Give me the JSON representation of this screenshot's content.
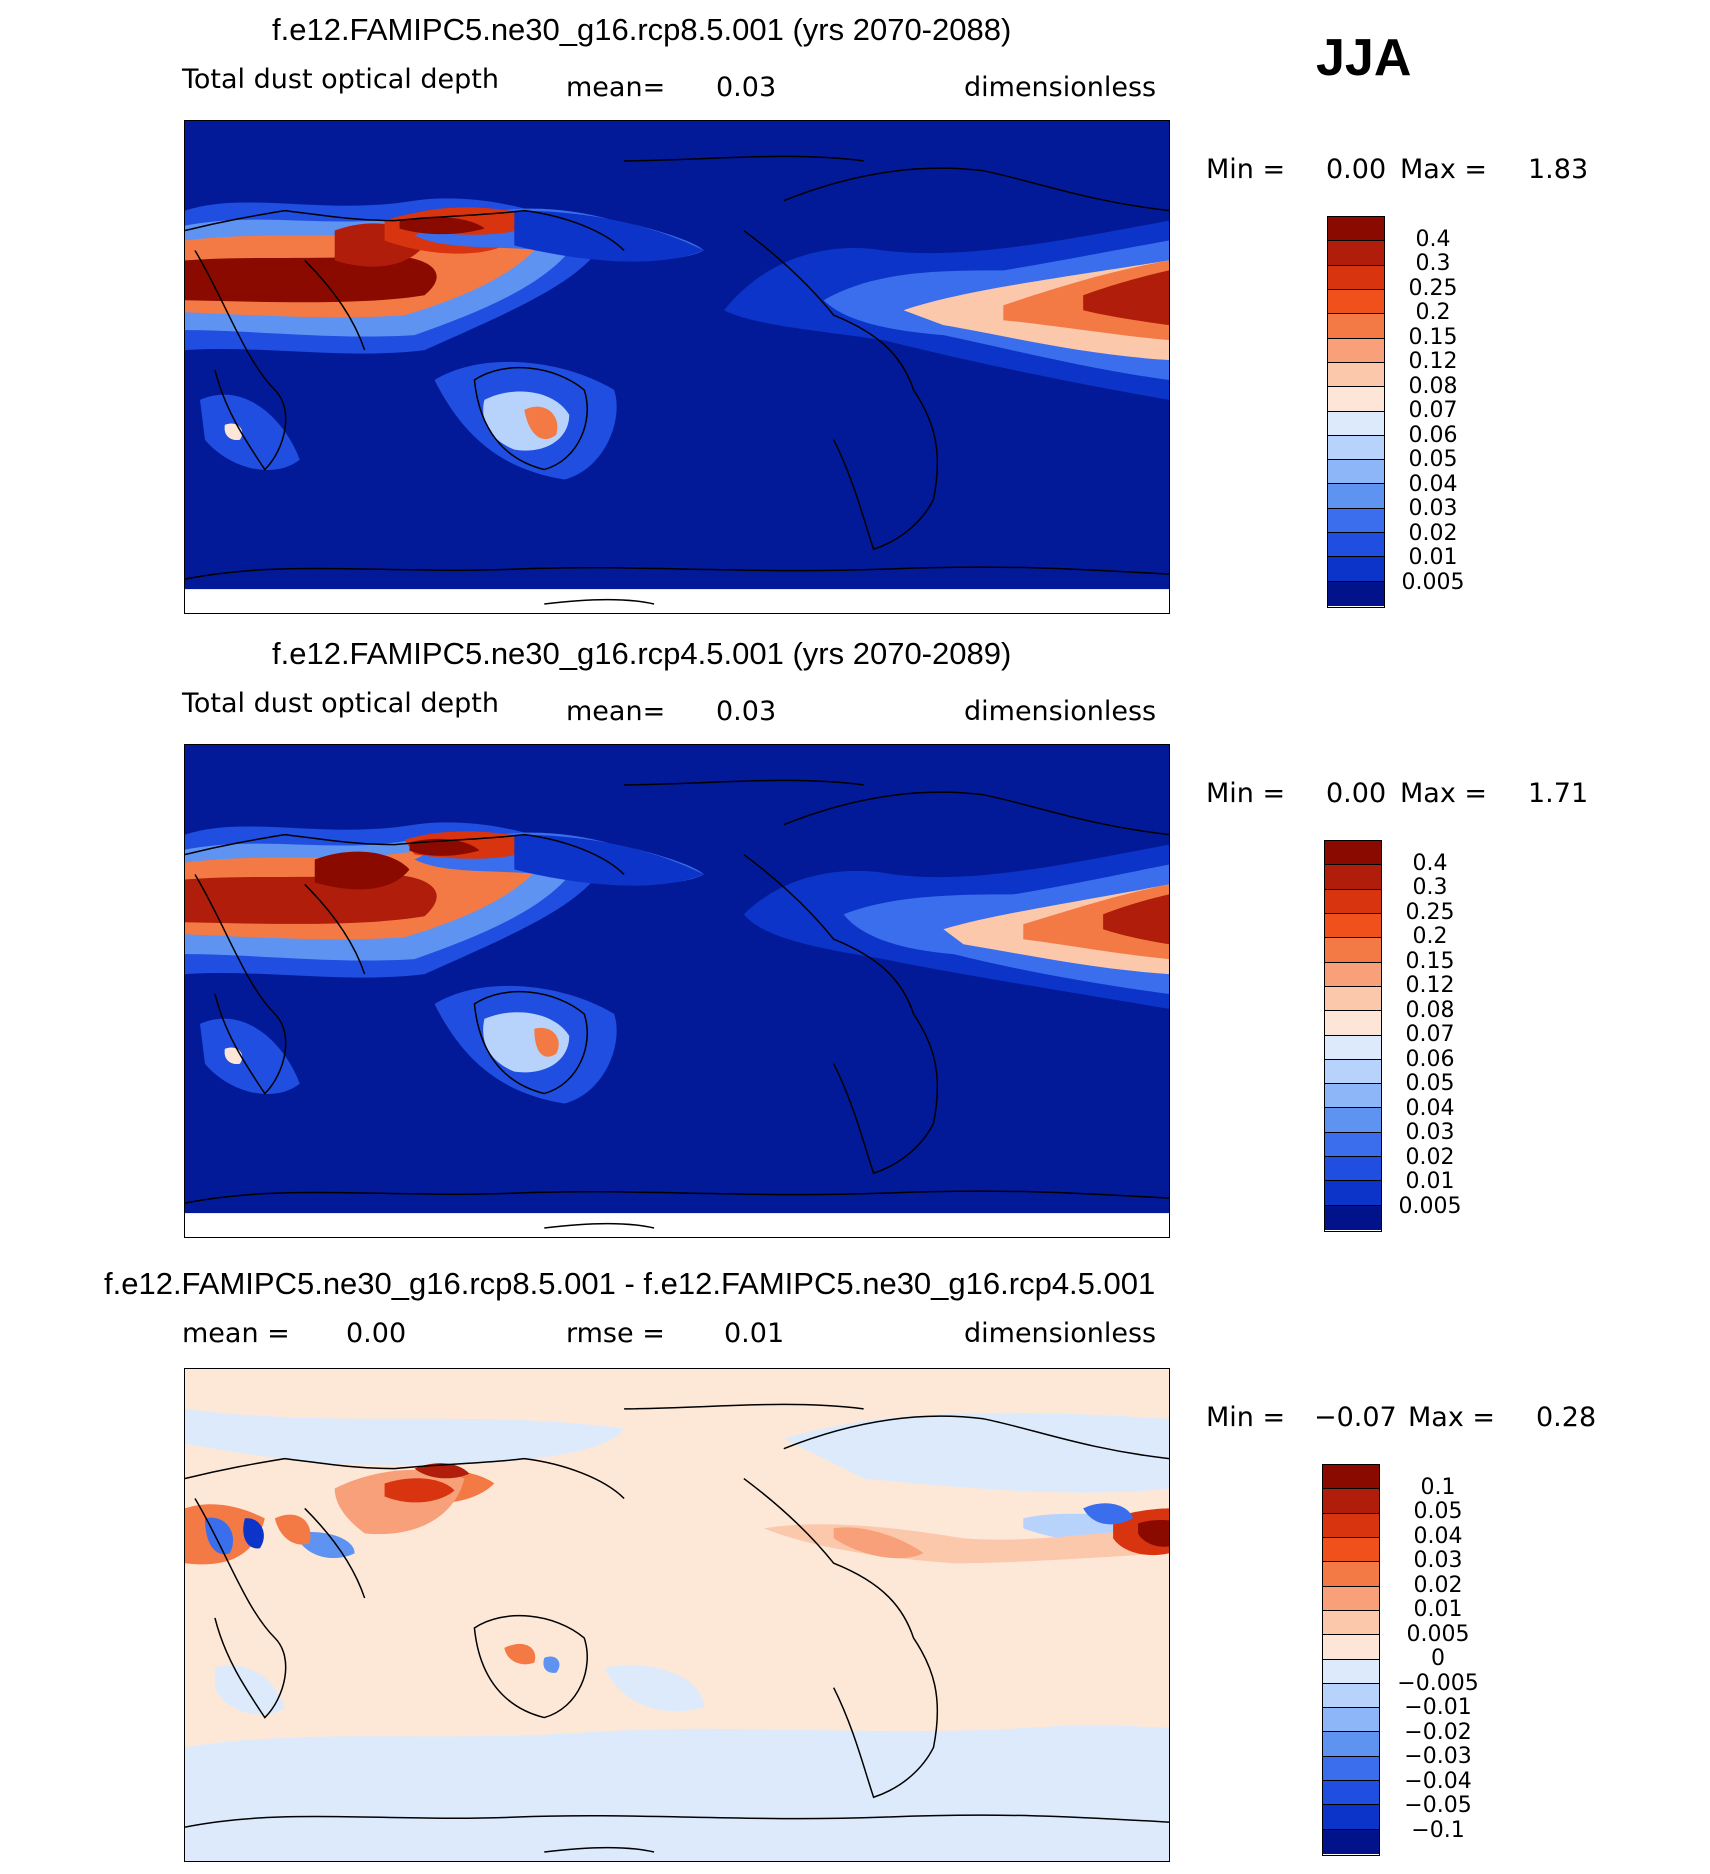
{
  "season": "JJA",
  "panels": [
    {
      "title": "f.e12.FAMIPC5.ne30_g16.rcp8.5.001 (yrs 2070-2088)",
      "left_label": "Total dust optical depth",
      "mid_label": "mean=",
      "mid_value": "0.03",
      "units": "dimensionless",
      "min_label": "Min =",
      "min_value": "0.00",
      "max_label": "Max =",
      "max_value": "1.83"
    },
    {
      "title": "f.e12.FAMIPC5.ne30_g16.rcp4.5.001 (yrs 2070-2089)",
      "left_label": "Total dust optical depth",
      "mid_label": "mean=",
      "mid_value": "0.03",
      "units": "dimensionless",
      "min_label": "Min =",
      "min_value": "0.00",
      "max_label": "Max =",
      "max_value": "1.71"
    },
    {
      "title": "f.e12.FAMIPC5.ne30_g16.rcp8.5.001 - f.e12.FAMIPC5.ne30_g16.rcp4.5.001",
      "left_label": "mean =",
      "left_value": "0.00",
      "mid_label": "rmse =",
      "mid_value": "0.01",
      "units": "dimensionless",
      "min_label": "Min =",
      "min_value": "−0.07",
      "max_label": "Max =",
      "max_value": "0.28"
    }
  ],
  "colorbars": {
    "dust": {
      "labels": [
        "0.4",
        "0.3",
        "0.25",
        "0.2",
        "0.15",
        "0.12",
        "0.08",
        "0.07",
        "0.06",
        "0.05",
        "0.04",
        "0.03",
        "0.02",
        "0.01",
        "0.005"
      ],
      "colors": [
        "#8b0a00",
        "#b01d0a",
        "#d8340f",
        "#f0501c",
        "#f47a45",
        "#f8a07a",
        "#fbc8ab",
        "#fde6d7",
        "#dceafc",
        "#b8d3fb",
        "#8db6f8",
        "#5e93f2",
        "#3a6eec",
        "#1f4ee0",
        "#0c34c8",
        "#02128a"
      ]
    },
    "diff": {
      "labels": [
        "0.1",
        "0.05",
        "0.04",
        "0.03",
        "0.02",
        "0.01",
        "0.005",
        "0",
        "−0.005",
        "−0.01",
        "−0.02",
        "−0.03",
        "−0.04",
        "−0.05",
        "−0.1"
      ],
      "colors": [
        "#8b0a00",
        "#b01d0a",
        "#d8340f",
        "#f0501c",
        "#f47a45",
        "#f8a07a",
        "#fbc8ab",
        "#fde6d7",
        "#dceafc",
        "#b8d3fb",
        "#8db6f8",
        "#5e93f2",
        "#3a6eec",
        "#1f4ee0",
        "#0c34c8",
        "#02128a"
      ]
    }
  },
  "colors": {
    "ocean_dust": "#021a98",
    "diff_background": "#fde8d8"
  }
}
